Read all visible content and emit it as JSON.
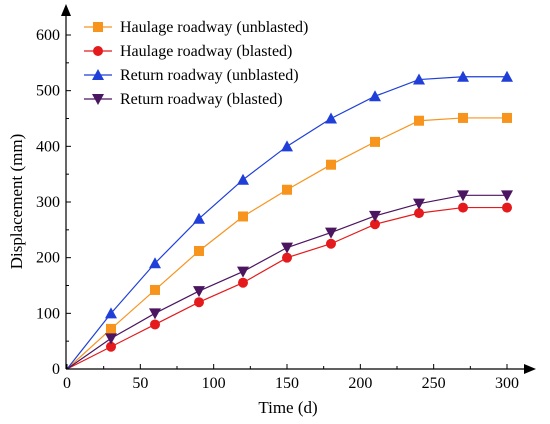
{
  "chart_data": {
    "type": "line",
    "xlabel": "Time (d)",
    "ylabel": "Displacement (mm)",
    "xlim": [
      0,
      320
    ],
    "ylim": [
      0,
      650
    ],
    "xticks": [
      0,
      50,
      100,
      150,
      200,
      250,
      300
    ],
    "yticks": [
      0,
      100,
      200,
      300,
      400,
      500,
      600
    ],
    "x": [
      0,
      30,
      60,
      90,
      120,
      150,
      180,
      210,
      240,
      270,
      300
    ],
    "legend_position": "top-left",
    "grid": false,
    "series": [
      {
        "name": "Haulage roadway (unblasted)",
        "color": "#F7941D",
        "marker": "square",
        "values": [
          0,
          72,
          142,
          212,
          274,
          322,
          367,
          408,
          446,
          451,
          451
        ]
      },
      {
        "name": "Haulage roadway (blasted)",
        "color": "#E41A1C",
        "marker": "circle",
        "values": [
          0,
          40,
          80,
          120,
          155,
          200,
          225,
          260,
          280,
          290,
          290
        ]
      },
      {
        "name": "Return roadway (unblasted)",
        "color": "#1F3FD8",
        "marker": "triangle-up",
        "values": [
          0,
          100,
          190,
          270,
          340,
          400,
          450,
          490,
          520,
          525,
          525
        ]
      },
      {
        "name": "Return roadway (blasted)",
        "color": "#4B1560",
        "marker": "triangle-down",
        "values": [
          0,
          55,
          100,
          140,
          175,
          218,
          245,
          275,
          297,
          312,
          312
        ]
      }
    ]
  }
}
